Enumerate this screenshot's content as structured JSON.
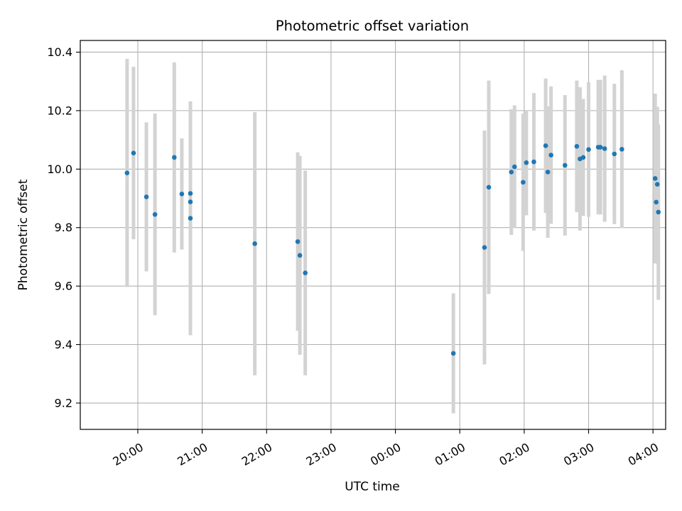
{
  "chart_data": {
    "type": "scatter",
    "title": "Photometric offset variation",
    "xlabel": "UTC time",
    "ylabel": "Photometric offset",
    "x_ticks": [
      "20:00",
      "21:00",
      "22:00",
      "23:00",
      "00:00",
      "01:00",
      "02:00",
      "03:00",
      "04:00"
    ],
    "y_ticks": [
      "9.2",
      "9.4",
      "9.6",
      "9.8",
      "10.0",
      "10.2",
      "10.4"
    ],
    "xlim": [
      -0.56,
      8.53
    ],
    "ylim": [
      9.11,
      10.44
    ],
    "x_axis_note": "x values are hours since 19:40 UTC",
    "grid": true,
    "colors": {
      "points": "#1f77b4",
      "errorbars": "#d3d3d3",
      "grid": "#b0b0b0"
    },
    "series": [
      {
        "name": "offset",
        "points": [
          {
            "t": "19:50",
            "y": 9.987,
            "err": 0.39
          },
          {
            "t": "19:56",
            "y": 10.055,
            "err": 0.295
          },
          {
            "t": "20:08",
            "y": 9.905,
            "err": 0.255
          },
          {
            "t": "20:16",
            "y": 9.845,
            "err": 0.345
          },
          {
            "t": "20:34",
            "y": 10.04,
            "err": 0.325
          },
          {
            "t": "20:41",
            "y": 9.915,
            "err": 0.19
          },
          {
            "t": "20:49",
            "y": 9.917,
            "err": 0.1
          },
          {
            "t": "20:49",
            "y": 9.888,
            "err": 0.1
          },
          {
            "t": "20:49",
            "y": 9.832,
            "err": 0.4
          },
          {
            "t": "21:49",
            "y": 9.745,
            "err": 0.45
          },
          {
            "t": "22:29",
            "y": 9.752,
            "err": 0.305
          },
          {
            "t": "22:31",
            "y": 9.705,
            "err": 0.34
          },
          {
            "t": "22:36",
            "y": 9.645,
            "err": 0.35
          },
          {
            "t": "00:54",
            "y": 9.37,
            "err": 0.205
          },
          {
            "t": "01:23",
            "y": 9.732,
            "err": 0.4
          },
          {
            "t": "01:27",
            "y": 9.938,
            "err": 0.365
          },
          {
            "t": "01:48",
            "y": 9.99,
            "err": 0.215
          },
          {
            "t": "01:51",
            "y": 10.008,
            "err": 0.21
          },
          {
            "t": "01:59",
            "y": 9.955,
            "err": 0.235
          },
          {
            "t": "02:02",
            "y": 10.022,
            "err": 0.18
          },
          {
            "t": "02:09",
            "y": 10.025,
            "err": 0.235
          },
          {
            "t": "02:20",
            "y": 10.08,
            "err": 0.23
          },
          {
            "t": "02:22",
            "y": 9.99,
            "err": 0.225
          },
          {
            "t": "02:25",
            "y": 10.048,
            "err": 0.235
          },
          {
            "t": "02:38",
            "y": 10.013,
            "err": 0.24
          },
          {
            "t": "02:49",
            "y": 10.078,
            "err": 0.225
          },
          {
            "t": "02:52",
            "y": 10.035,
            "err": 0.245
          },
          {
            "t": "02:55",
            "y": 10.04,
            "err": 0.2
          },
          {
            "t": "03:00",
            "y": 10.067,
            "err": 0.23
          },
          {
            "t": "03:09",
            "y": 10.075,
            "err": 0.23
          },
          {
            "t": "03:11",
            "y": 10.075,
            "err": 0.23
          },
          {
            "t": "03:15",
            "y": 10.07,
            "err": 0.25
          },
          {
            "t": "03:24",
            "y": 10.052,
            "err": 0.24
          },
          {
            "t": "03:31",
            "y": 10.068,
            "err": 0.27
          },
          {
            "t": "04:02",
            "y": 9.968,
            "err": 0.29
          },
          {
            "t": "04:03",
            "y": 9.887,
            "err": 0.21
          },
          {
            "t": "04:04",
            "y": 9.948,
            "err": 0.265
          },
          {
            "t": "04:05",
            "y": 9.853,
            "err": 0.3
          }
        ]
      }
    ]
  }
}
